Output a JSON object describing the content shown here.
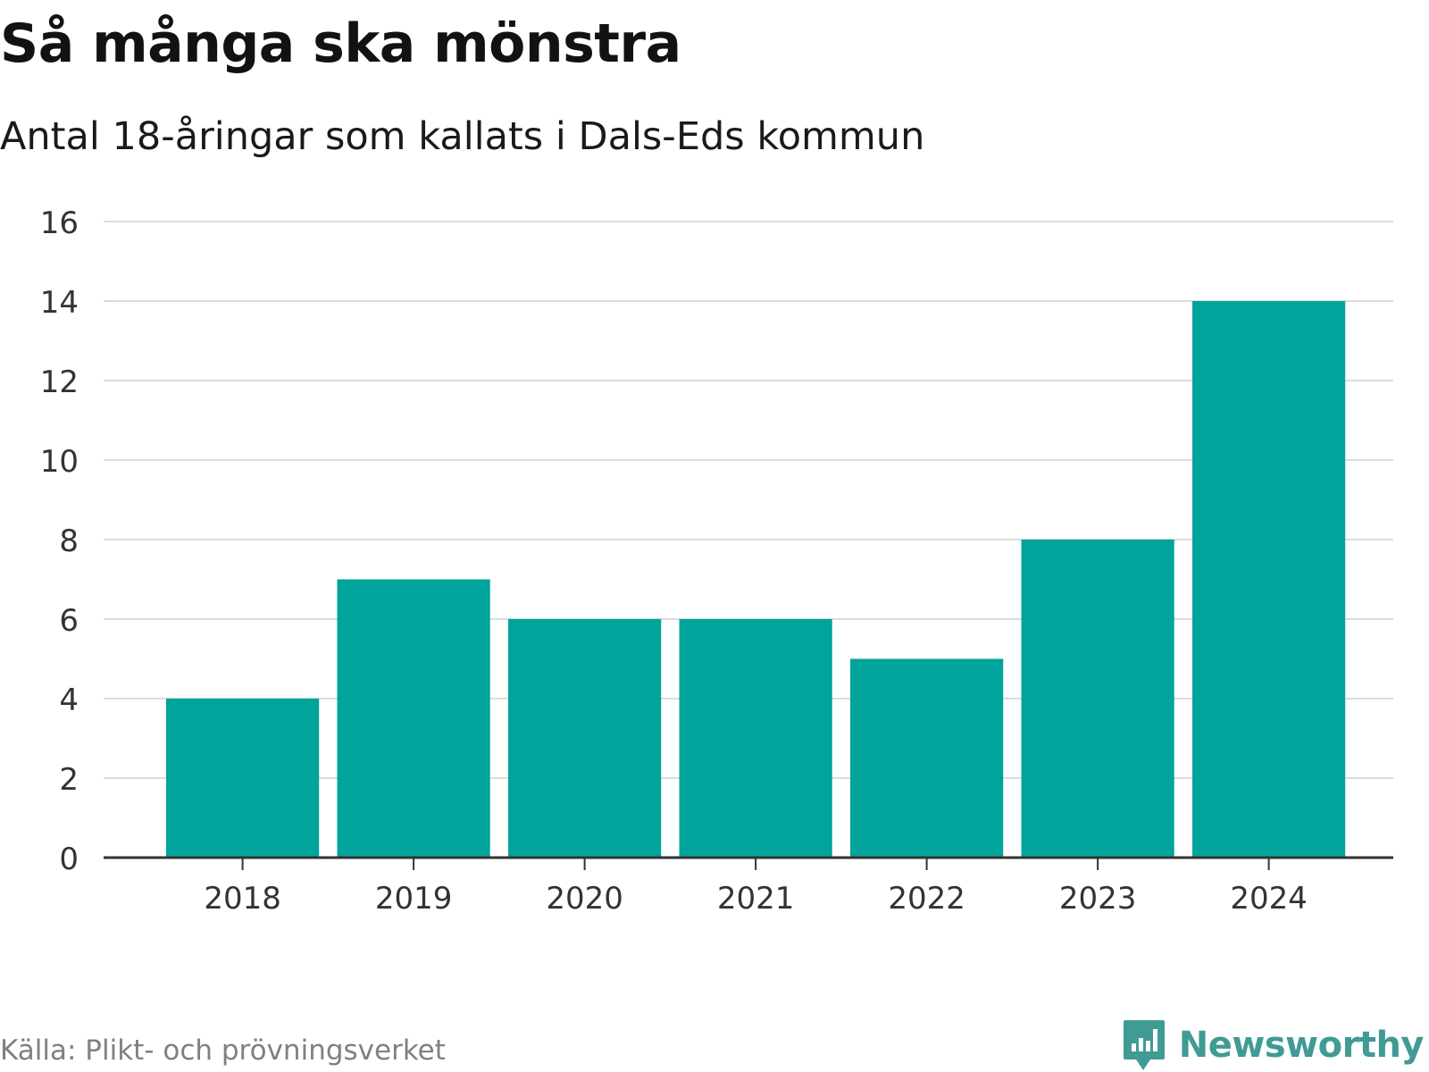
{
  "header": {
    "title": "Så många ska mönstra",
    "subtitle": "Antal 18-åringar som kallats i Dals-Eds kommun"
  },
  "footer": {
    "source": "Källa: Plikt- och prövningsverket",
    "brand": "Newsworthy"
  },
  "colors": {
    "bar": "#00a49a",
    "gridline": "#dcdcdc",
    "axis": "#333333",
    "brand": "#3f9b94"
  },
  "icons": {
    "brand_logo": "bar-chart-speech-bubble-icon"
  },
  "chart_data": {
    "type": "bar",
    "title": "Så många ska mönstra",
    "subtitle": "Antal 18-åringar som kallats i Dals-Eds kommun",
    "xlabel": "",
    "ylabel": "",
    "categories": [
      "2018",
      "2019",
      "2020",
      "2021",
      "2022",
      "2023",
      "2024"
    ],
    "values": [
      4,
      7,
      6,
      6,
      5,
      8,
      14
    ],
    "ylim": [
      0,
      16
    ],
    "yticks": [
      0,
      2,
      4,
      6,
      8,
      10,
      12,
      14,
      16
    ],
    "grid": true,
    "legend": "none"
  }
}
